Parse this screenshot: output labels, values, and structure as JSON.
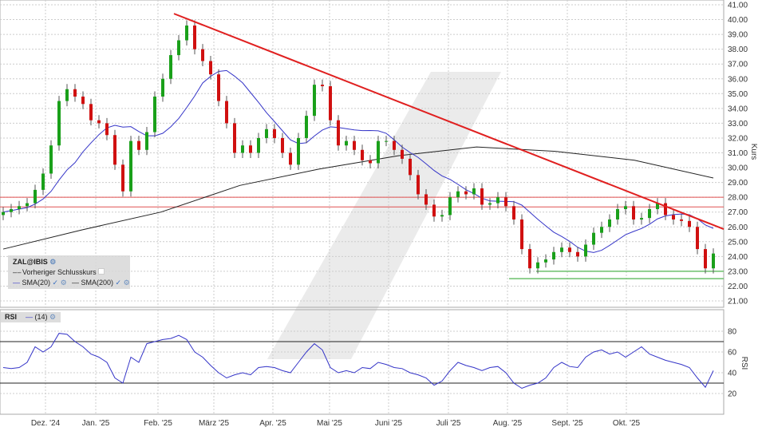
{
  "chart_data": {
    "type": "candlestick",
    "instrument": "ZAL@IBIS",
    "y_axis_label": "Kurs",
    "ylim": [
      21,
      41
    ],
    "y_ticks": [
      "41.00",
      "40.00",
      "39.00",
      "38.00",
      "37.00",
      "36.00",
      "35.00",
      "34.00",
      "33.00",
      "32.00",
      "31.00",
      "30.00",
      "29.00",
      "28.00",
      "27.00",
      "26.00",
      "25.00",
      "24.00",
      "23.00",
      "22.00",
      "21.00"
    ],
    "x_tick_labels": [
      "Dez. '24",
      "Jan. '25",
      "Feb. '25",
      "März '25",
      "Apr. '25",
      "Mai '25",
      "Juni '25",
      "Juli '25",
      "Aug. '25",
      "Sept. '25",
      "Okt. '25"
    ],
    "grid": true,
    "closes": [
      27,
      27.2,
      27.4,
      27.6,
      28.5,
      29.6,
      31.5,
      34.5,
      35.3,
      34.8,
      34.3,
      33.2,
      33,
      32.2,
      30.2,
      28.4,
      31.8,
      31.2,
      32.4,
      34.8,
      36,
      37.6,
      38.6,
      39.6,
      38,
      37.2,
      36.3,
      34.5,
      33,
      31,
      31.5,
      31,
      32,
      32.6,
      32,
      31,
      30.2,
      32,
      33.5,
      35.6,
      35.5,
      33.2,
      31.5,
      31.8,
      31.2,
      30.5,
      30.3,
      31.8,
      31.8,
      31.2,
      30.6,
      29.5,
      28.2,
      27.5,
      26.7,
      26.8,
      28,
      28.4,
      28.2,
      28.6,
      27.5,
      27.6,
      28,
      27.4,
      26.5,
      24.5,
      23.2,
      23.6,
      23.8,
      24.3,
      24.6,
      24.3,
      24,
      24.8,
      25.6,
      26,
      26.5,
      27.2,
      27.4,
      26.5,
      26.6,
      27.2,
      27.6,
      26.8,
      26.5,
      26.4,
      26,
      24.5,
      23.2,
      24.2
    ],
    "sma200": [
      24.5,
      25.8,
      27.0,
      28.8,
      29.9,
      30.8,
      31.4,
      31.1,
      30.5,
      29.3
    ],
    "trendline": {
      "from": 40.4,
      "to": 25.85,
      "color": "#e02020"
    },
    "resistance_levels": [
      28.0,
      27.35
    ],
    "support_levels": [
      23.0,
      22.5
    ],
    "legend": {
      "title": "ZAL@IBIS",
      "items": [
        "Vorheriger Schlusskurs",
        "SMA(20)",
        "SMA(200)"
      ]
    },
    "colors": {
      "up": "#1aa01a",
      "down": "#d01010",
      "sma20": "#3535c8",
      "sma200": "#222222",
      "support": "#6cc06c",
      "resistance": "#e05050"
    },
    "rsi": {
      "label": "RSI",
      "period": "(14)",
      "axis_label": "RSI",
      "y_ticks": [
        "80",
        "60",
        "40",
        "20"
      ],
      "levels": [
        70,
        30
      ],
      "values": [
        45,
        44,
        45,
        50,
        65,
        60,
        65,
        78,
        77,
        70,
        65,
        58,
        55,
        50,
        35,
        30,
        55,
        50,
        68,
        70,
        72,
        73,
        76,
        72,
        60,
        55,
        47,
        40,
        35,
        38,
        40,
        38,
        45,
        46,
        45,
        42,
        40,
        50,
        60,
        68,
        62,
        45,
        40,
        42,
        40,
        45,
        44,
        50,
        48,
        45,
        44,
        40,
        38,
        35,
        28,
        32,
        42,
        50,
        47,
        45,
        42,
        45,
        46,
        40,
        30,
        25,
        28,
        30,
        35,
        45,
        50,
        46,
        45,
        55,
        60,
        62,
        58,
        60,
        55,
        60,
        65,
        58,
        55,
        52,
        50,
        48,
        45,
        35,
        26,
        42
      ]
    }
  }
}
